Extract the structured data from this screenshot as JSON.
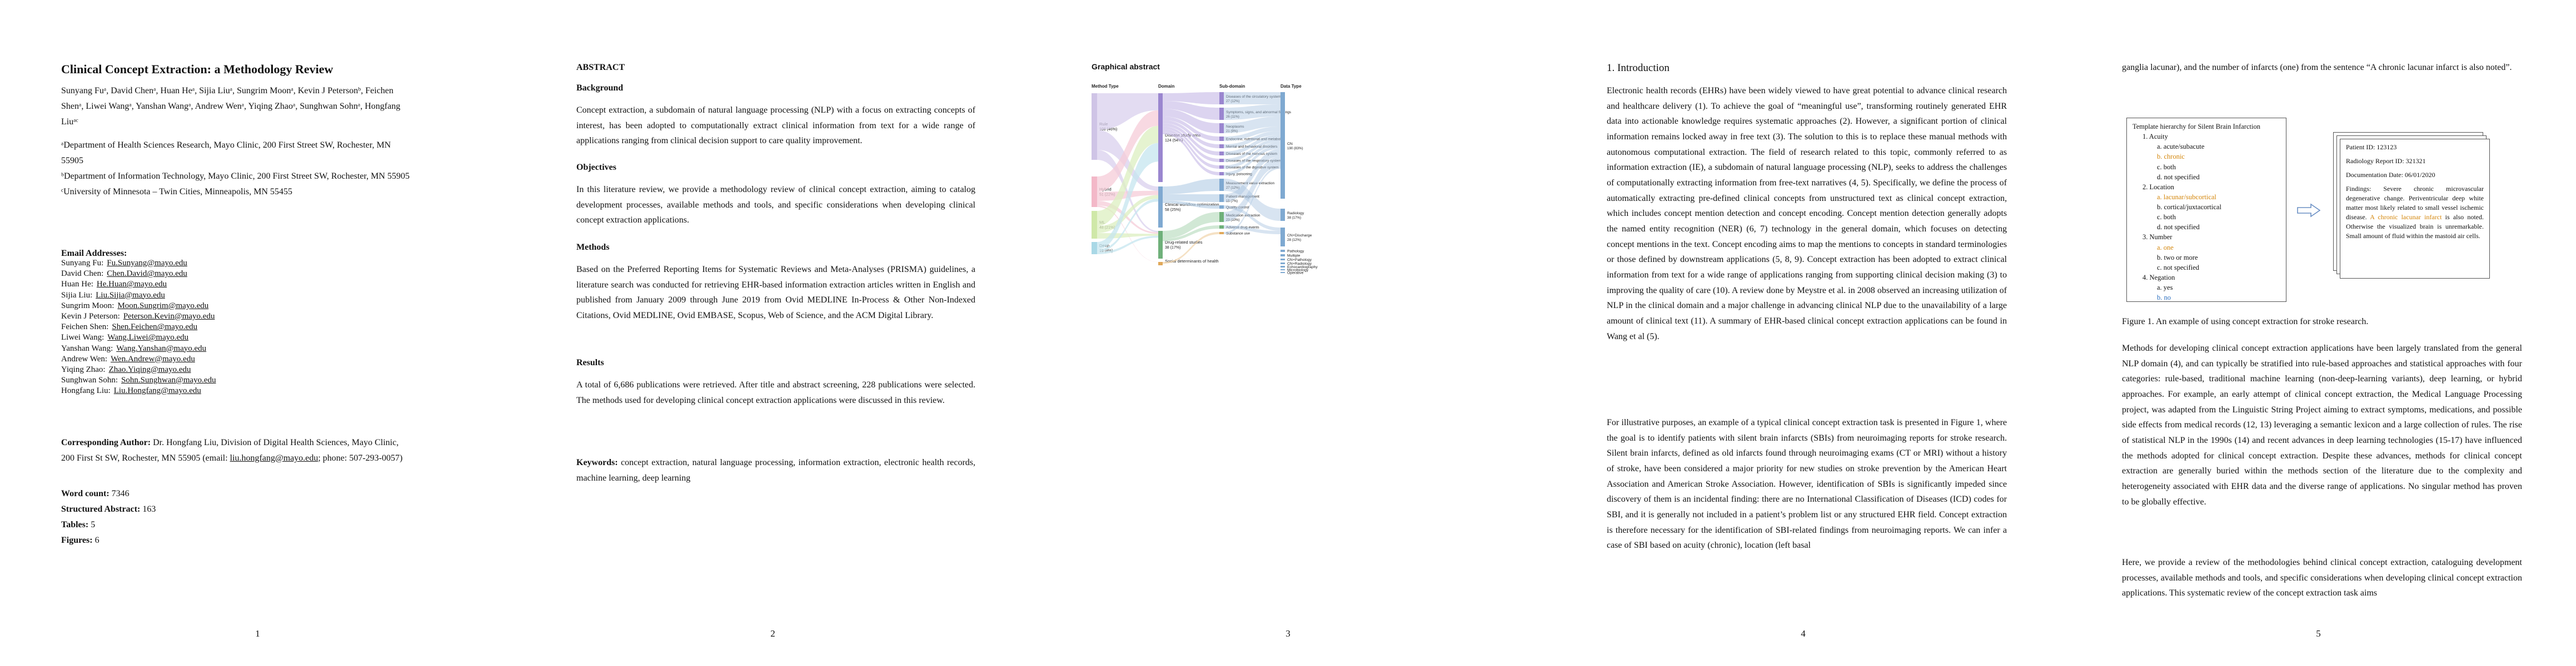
{
  "pages": [
    {
      "number": "1"
    },
    {
      "number": "2"
    },
    {
      "number": "3"
    },
    {
      "number": "4"
    },
    {
      "number": "5"
    }
  ],
  "p1": {
    "title": "Clinical Concept Extraction: a Methodology Review",
    "authors_line1": "Sunyang Fuᵃ, David Chenᵃ, Huan Heᵃ, Sijia Liuᵃ, Sungrim Moonᵃ, Kevin J Petersonᵇ, Feichen",
    "authors_line2": "Shenᵃ, Liwei Wangᵃ, Yanshan Wangᵃ, Andrew Wenᵃ, Yiqing Zhaoᵃ, Sunghwan Sohnᵃ, Hongfang",
    "authors_line3": "Liuᵃᶜ",
    "affil_a1": "ᵃDepartment of Health Sciences Research, Mayo Clinic, 200 First Street SW, Rochester, MN",
    "affil_a2": "55905",
    "affil_b": "ᵇDepartment of Information Technology, Mayo Clinic, 200 First Street SW, Rochester, MN 55905",
    "affil_c": "ᶜUniversity of Minnesota – Twin Cities, Minneapolis, MN 55455",
    "email_heading": "Email Addresses:",
    "emails": [
      {
        "name": "Sunyang Fu:",
        "email": "Fu.Sunyang@mayo.edu"
      },
      {
        "name": "David Chen:",
        "email": "Chen.David@mayo.edu"
      },
      {
        "name": "Huan He:",
        "email": "He.Huan@mayo.edu"
      },
      {
        "name": "Sijia Liu:",
        "email": "Liu.Sijia@mayo.edu"
      },
      {
        "name": "Sungrim Moon:",
        "email": "Moon.Sungrim@mayo.edu"
      },
      {
        "name": "Kevin J Peterson:",
        "email": "Peterson.Kevin@mayo.edu"
      },
      {
        "name": "Feichen Shen:",
        "email": "Shen.Feichen@mayo.edu"
      },
      {
        "name": "Liwei Wang:",
        "email": "Wang.Liwei@mayo.edu"
      },
      {
        "name": "Yanshan Wang:",
        "email": "Wang.Yanshan@mayo.edu"
      },
      {
        "name": "Andrew Wen:",
        "email": "Wen.Andrew@mayo.edu"
      },
      {
        "name": "Yiqing Zhao:",
        "email": "Zhao.Yiqing@mayo.edu"
      },
      {
        "name": "Sunghwan Sohn:",
        "email": "Sohn.Sunghwan@mayo.edu"
      },
      {
        "name": "Hongfang Liu:",
        "email": "Liu.Hongfang@mayo.edu"
      }
    ],
    "corr_label": "Corresponding Author:",
    "corr_text1": " Dr. Hongfang Liu, Division of Digital Health Sciences, Mayo Clinic,",
    "corr_text2": "200 First St SW, Rochester, MN 55905 (email: ",
    "corr_email": "liu.hongfang@mayo.edu",
    "corr_text3": "; phone: 507-293-0057)",
    "word_count_label": "Word count:",
    "word_count": "7346",
    "abstract_label": "Structured Abstract:",
    "abstract_count": "163",
    "tables_label": "Tables:",
    "tables_count": "5",
    "figures_label": "Figures:",
    "figures_count": "6"
  },
  "p2": {
    "abstract_heading": "ABSTRACT",
    "background_heading": "Background",
    "background_text": "Concept extraction, a subdomain of natural language processing (NLP) with a focus on extracting concepts of interest, has been adopted to computationally extract clinical information from text for a wide range of applications ranging from clinical decision support to care quality improvement.",
    "objectives_heading": "Objectives",
    "objectives_text": "In this literature review, we provide a methodology review of clinical concept extraction, aiming to catalog development processes, available methods and tools, and specific considerations when developing clinical concept extraction applications.",
    "methods_heading": "Methods",
    "methods_text": "Based on the Preferred Reporting Items for Systematic Reviews and Meta-Analyses (PRISMA) guidelines, a literature search was conducted for retrieving EHR-based information extraction articles written in English and published from January 2009 through June 2019 from Ovid MEDLINE In-Process & Other Non-Indexed Citations, Ovid MEDLINE, Ovid EMBASE, Scopus, Web of Science, and the ACM Digital Library.",
    "results_heading": "Results",
    "results_text": "A total of 6,686 publications were retrieved. After title and abstract screening, 228 publications were selected. The methods used for developing clinical concept extraction applications were discussed in this review.",
    "keywords_label": "Keywords:",
    "keywords_text": " concept extraction, natural language processing, information extraction, electronic health records, machine learning, deep learning"
  },
  "p3": {
    "heading": "Graphical abstract",
    "col_headers": [
      "Method Type",
      "Domain",
      "Sub-domain",
      "Data Type"
    ],
    "method_nodes": [
      {
        "label": "Rule",
        "count": "108 (46%)",
        "color": "#cfc4e6"
      },
      {
        "label": "Hybrid",
        "count": "51 (22%)",
        "color": "#f3b8c8"
      },
      {
        "label": "ML",
        "count": "48 (21%)",
        "color": "#cfe8a8"
      },
      {
        "label": "Deep",
        "count": "19 (8%)",
        "color": "#a9d8e6"
      }
    ],
    "domain_nodes": [
      {
        "label": "Disease study area",
        "count": "124 (54%)",
        "color": "#9a86cf"
      },
      {
        "label": "Clinical workflow optimization",
        "count": "58 (25%)",
        "color": "#7fa9d1"
      },
      {
        "label": "Drug-related studies",
        "count": "38 (17%)",
        "color": "#6fb07a"
      },
      {
        "label": "Social determinants of health",
        "count": "",
        "color": "#e0a85a"
      }
    ],
    "sub_nodes": [
      {
        "label": "Diseases of the circulatory system",
        "count": "27 (12%)",
        "color": "#9a86cf"
      },
      {
        "label": "Symptoms, signs, and abnormal findings",
        "count": "26 (11%)",
        "color": "#9a86cf"
      },
      {
        "label": "Neoplasms",
        "count": "21 (9%)",
        "color": "#9a86cf"
      },
      {
        "label": "Endocrine, nutritional and metabolic",
        "count": "",
        "color": "#9a86cf"
      },
      {
        "label": "Mental and behavioral disorders",
        "count": "",
        "color": "#9a86cf"
      },
      {
        "label": "Diseases of the nervous system",
        "count": "",
        "color": "#9a86cf"
      },
      {
        "label": "Diseases of the respiratory system",
        "count": "",
        "color": "#9a86cf"
      },
      {
        "label": "Diseases of the digestive system",
        "count": "",
        "color": "#9a86cf"
      },
      {
        "label": "Injury, poisoning",
        "count": "",
        "color": "#9a86cf"
      },
      {
        "label": "Measurement value extraction",
        "count": "27 (12%)",
        "color": "#7fa9d1"
      },
      {
        "label": "Patient management",
        "count": "15 (7%)",
        "color": "#7fa9d1"
      },
      {
        "label": "Quality control",
        "count": "",
        "color": "#7fa9d1"
      },
      {
        "label": "Medication extraction",
        "count": "23 (10%)",
        "color": "#6fb07a"
      },
      {
        "label": "Adverse drug events",
        "count": "",
        "color": "#6fb07a"
      },
      {
        "label": "Substance use",
        "count": "",
        "color": "#e0a85a"
      }
    ],
    "data_nodes": [
      {
        "label": "CN",
        "count": "190 (83%)",
        "color": "#7fa9d1"
      },
      {
        "label": "Radiology",
        "count": "38 (17%)",
        "color": "#7fa9d1"
      },
      {
        "label": "CN+Discharge",
        "count": "28 (12%)",
        "color": "#7fa9d1"
      },
      {
        "label": "Pathology",
        "count": "",
        "color": "#7fa9d1"
      },
      {
        "label": "Multiple",
        "count": "",
        "color": "#7fa9d1"
      },
      {
        "label": "CN+Pathology",
        "count": "",
        "color": "#7fa9d1"
      },
      {
        "label": "CN+Radiology",
        "count": "",
        "color": "#7fa9d1"
      },
      {
        "label": "Echocardiography",
        "count": "",
        "color": "#7fa9d1"
      },
      {
        "label": "Microbiology",
        "count": "",
        "color": "#7fa9d1"
      },
      {
        "label": "Operative",
        "count": "",
        "color": "#7fa9d1"
      }
    ]
  },
  "p4": {
    "heading": "1.   Introduction",
    "para1": "Electronic health records (EHRs) have been widely viewed to have great potential to advance clinical research and healthcare delivery (1). To achieve the goal of “meaningful use”, transforming routinely generated EHR data into actionable knowledge requires systematic approaches (2). However, a significant portion of clinical information remains locked away in free text (3). The solution to this is to replace these manual methods with autonomous computational extraction. The field of research related to this topic, commonly referred to as information extraction (IE), a subdomain of natural language processing (NLP), seeks to address the challenges of computationally extracting information from free-text narratives (4, 5). Specifically, we define the process of automatically extracting pre-defined clinical concepts from unstructured text as clinical concept extraction, which includes concept mention detection and concept encoding. Concept mention detection generally adopts the named entity recognition (NER) (6, 7) technology in the general domain, which focuses on detecting concept mentions in the text. Concept encoding aims to map the mentions to concepts in standard terminologies or those defined by downstream applications (5, 8, 9). Concept extraction has been adopted to extract clinical information from text for a wide range of applications ranging from supporting clinical decision making (3) to improving the quality of care (10). A review done by Meystre et al. in 2008 observed an increasing utilization of NLP in the clinical domain and a major challenge in advancing clinical NLP due to the unavailability of a large amount of clinical text (11). A summary of EHR-based clinical concept extraction applications can be found in Wang et al (5).",
    "para2": "For illustrative purposes, an example of a typical clinical concept extraction task is presented in Figure 1, where the goal is to identify patients with silent brain infarcts (SBIs) from neuroimaging reports for stroke research. Silent brain infarcts, defined as old infarcts found through neuroimaging exams (CT or MRI) without a history of stroke, have been considered a major priority for new studies on stroke prevention by the American Heart Association and American Stroke Association. However, identification of SBIs is significantly impeded since discovery of them is an incidental finding: there are no International Classification of Diseases (ICD) codes for SBI, and it is generally not included in a patient’s problem list or any structured EHR field. Concept extraction is therefore necessary for the identification of SBI-related findings from neuroimaging reports. We can infer a case of SBI based on acuity (chronic), location (left basal"
  },
  "p5": {
    "para_top": "ganglia lacunar), and the number of infarcts (one) from the sentence “A chronic lacunar infarct is also noted”.",
    "template_title": "Template hierarchy for Silent Brain Infarction",
    "t_acuity": "1.    Acuity",
    "t_acuity_a": "a.   acute/subacute",
    "t_acuity_b": "b.   chronic",
    "t_acuity_c": "c.   both",
    "t_acuity_d": "d.   not specified",
    "t_loc": "2.    Location",
    "t_loc_a": "a.   lacunar/subcortical",
    "t_loc_b": "b.   cortical/juxtacortical",
    "t_loc_c": "c.   both",
    "t_loc_d": "d.   not specified",
    "t_num": "3.    Number",
    "t_num_a": "a.   one",
    "t_num_b": "b.   two or more",
    "t_num_c": "c.   not specified",
    "t_neg": "4.    Negation",
    "t_neg_a": "a.   yes",
    "t_neg_b": "b.   no",
    "report_patient": "Patient ID: 123123",
    "report_rad": "Radiology Report ID: 321321",
    "report_date": "Documentation Date: 06/01/2020",
    "report_findings_pre": "Findings:  Severe  chronic  microvascular degenerative change. Periventricular deep white matter most likely related to small vessel ischemic disease. ",
    "report_findings_hl": "A chronic lacunar infarct",
    "report_findings_post": " is also noted. Otherwise the visualized brain is unremarkable. Small amount of fluid within the mastoid air cells.",
    "fig_caption": "Figure 1. An example of using concept extraction for stroke research.",
    "para1": "Methods for developing clinical concept extraction applications have been largely translated from the general NLP domain (4), and can typically be stratified into rule-based approaches and statistical approaches with four categories: rule-based, traditional machine learning (non-deep-learning variants), deep learning, or hybrid approaches. For example, an early attempt of clinical concept extraction, the Medical Language Processing project, was adapted from the Linguistic String Project aiming to extract symptoms, medications, and possible side effects from medical records (12, 13) leveraging a semantic lexicon and a large collection of rules. The rise of statistical NLP in the 1990s (14) and recent advances in deep learning technologies (15-17) have influenced the methods adopted for clinical concept extraction. Despite these advances, methods for clinical concept extraction are generally buried within the methods section of the literature due to the complexity and heterogeneity associated with EHR data and the diverse range of applications. No singular method has proven to be globally effective.",
    "para2": "Here, we provide a review of the methodologies behind clinical concept extraction, cataloguing development processes, available methods and tools, and specific considerations when developing clinical concept extraction applications. This systematic review of the concept extraction task aims"
  },
  "colors": {
    "highlight_orange": "#d4860b",
    "highlight_blue": "#2c6fbf"
  }
}
